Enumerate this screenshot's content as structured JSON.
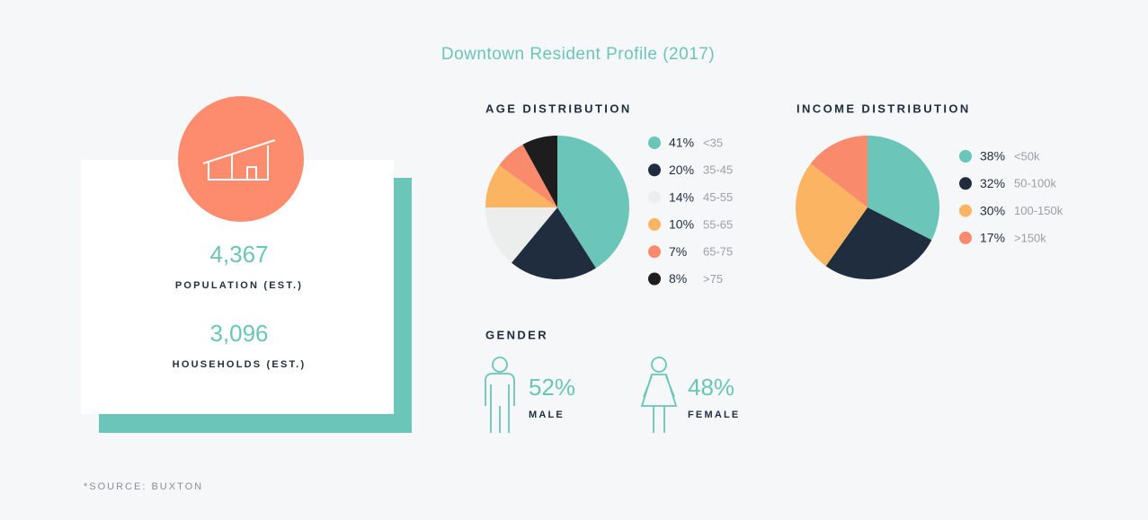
{
  "title": "Downtown Resident Profile (2017)",
  "stats": [
    {
      "value": "4,367",
      "label": "POPULATION (EST.)"
    },
    {
      "value": "3,096",
      "label": "HOUSEHOLDS (EST.)"
    }
  ],
  "source": "*SOURCE: BUXTON",
  "chart_data": [
    {
      "type": "pie",
      "title": "AGE DISTRIBUTION",
      "categories": [
        "<35",
        "35-45",
        "45-55",
        "55-65",
        "65-75",
        ">75"
      ],
      "values": [
        41,
        20,
        14,
        10,
        7,
        8
      ],
      "value_labels": [
        "41%",
        "20%",
        "14%",
        "10%",
        "7%",
        "8%"
      ],
      "colors": [
        "#6bc5b8",
        "#1f2d3f",
        "#eceeee",
        "#fbb462",
        "#f98a6c",
        "#1d1d1d"
      ]
    },
    {
      "type": "pie",
      "title": "INCOME DISTRIBUTION",
      "categories": [
        "<50k",
        "50-100k",
        "100-150k",
        ">150k"
      ],
      "values": [
        38,
        32,
        30,
        17
      ],
      "value_labels": [
        "38%",
        "32%",
        "30%",
        "17%"
      ],
      "colors": [
        "#6bc5b8",
        "#1f2d3f",
        "#fbb462",
        "#f98a6c"
      ]
    },
    {
      "type": "pictogram",
      "title": "GENDER",
      "categories": [
        "MALE",
        "FEMALE"
      ],
      "values": [
        52,
        48
      ],
      "value_labels": [
        "52%",
        "48%"
      ],
      "color": "#6bc5b8"
    }
  ]
}
